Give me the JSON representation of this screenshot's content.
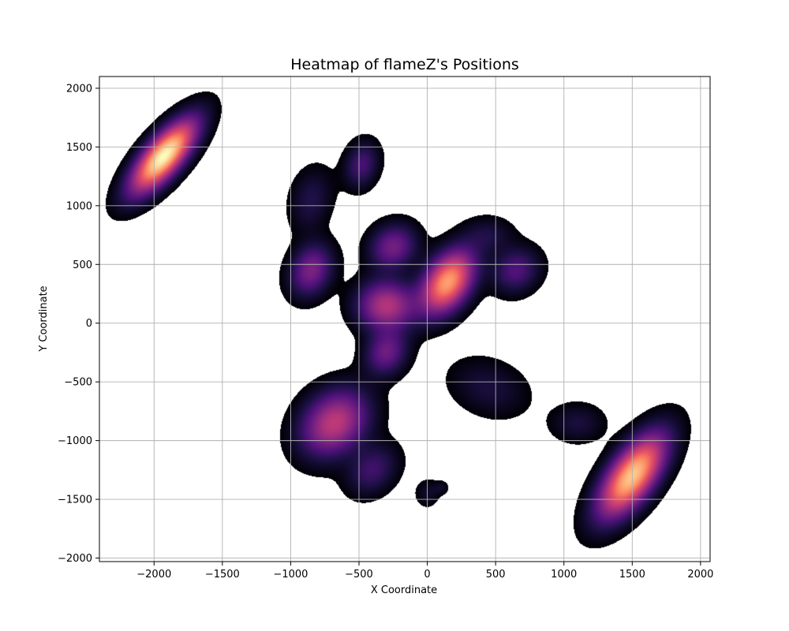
{
  "chart_data": {
    "type": "heatmap",
    "title": "Heatmap of flameZ's Positions",
    "xlabel": "X Coordinate",
    "ylabel": "Y Coordinate",
    "xlim": [
      -2400,
      2070
    ],
    "ylim": [
      -2030,
      2100
    ],
    "xticks": [
      -2000,
      -1500,
      -1000,
      -500,
      0,
      500,
      1000,
      1500,
      2000
    ],
    "xtick_labels": [
      "−2000",
      "−1500",
      "−1000",
      "−500",
      "0",
      "500",
      "1000",
      "1500",
      "2000"
    ],
    "yticks": [
      -2000,
      -1500,
      -1000,
      -500,
      0,
      500,
      1000,
      1500,
      2000
    ],
    "ytick_labels": [
      "−2000",
      "−1500",
      "−1000",
      "−500",
      "0",
      "500",
      "1000",
      "1500",
      "2000"
    ],
    "grid": true,
    "colormap": "magma",
    "background": "#ffffff",
    "hotspots": [
      {
        "x": -1930,
        "y": 1420,
        "sx": 90,
        "sy": 240,
        "angle": -35,
        "weight": 1.0
      },
      {
        "x": 1500,
        "y": -1300,
        "sx": 110,
        "sy": 260,
        "angle": -30,
        "weight": 0.88
      },
      {
        "x": 150,
        "y": 350,
        "sx": 110,
        "sy": 190,
        "angle": -25,
        "weight": 0.78
      },
      {
        "x": -300,
        "y": 150,
        "sx": 140,
        "sy": 140,
        "angle": 0,
        "weight": 0.45
      },
      {
        "x": -680,
        "y": -850,
        "sx": 150,
        "sy": 200,
        "angle": -30,
        "weight": 0.48
      },
      {
        "x": -850,
        "y": 450,
        "sx": 100,
        "sy": 150,
        "angle": -15,
        "weight": 0.32
      },
      {
        "x": -250,
        "y": 650,
        "sx": 110,
        "sy": 130,
        "angle": -25,
        "weight": 0.3
      },
      {
        "x": -300,
        "y": -250,
        "sx": 100,
        "sy": 130,
        "angle": -15,
        "weight": 0.28
      },
      {
        "x": 650,
        "y": 450,
        "sx": 110,
        "sy": 130,
        "angle": -25,
        "weight": 0.22
      },
      {
        "x": -480,
        "y": 1350,
        "sx": 80,
        "sy": 130,
        "angle": -10,
        "weight": 0.2
      },
      {
        "x": -400,
        "y": -1250,
        "sx": 110,
        "sy": 150,
        "angle": -30,
        "weight": 0.18
      },
      {
        "x": -850,
        "y": 1050,
        "sx": 100,
        "sy": 180,
        "angle": -10,
        "weight": 0.12
      },
      {
        "x": 450,
        "y": -550,
        "sx": 200,
        "sy": 150,
        "angle": -30,
        "weight": 0.1
      },
      {
        "x": 1100,
        "y": -850,
        "sx": 130,
        "sy": 110,
        "angle": 0,
        "weight": 0.1
      },
      {
        "x": 450,
        "y": 750,
        "sx": 120,
        "sy": 100,
        "angle": 0,
        "weight": 0.1
      },
      {
        "x": 0,
        "y": -1450,
        "sx": 60,
        "sy": 80,
        "angle": 0,
        "weight": 0.07
      },
      {
        "x": 100,
        "y": -1400,
        "sx": 40,
        "sy": 40,
        "angle": 0,
        "weight": 0.06
      }
    ]
  }
}
